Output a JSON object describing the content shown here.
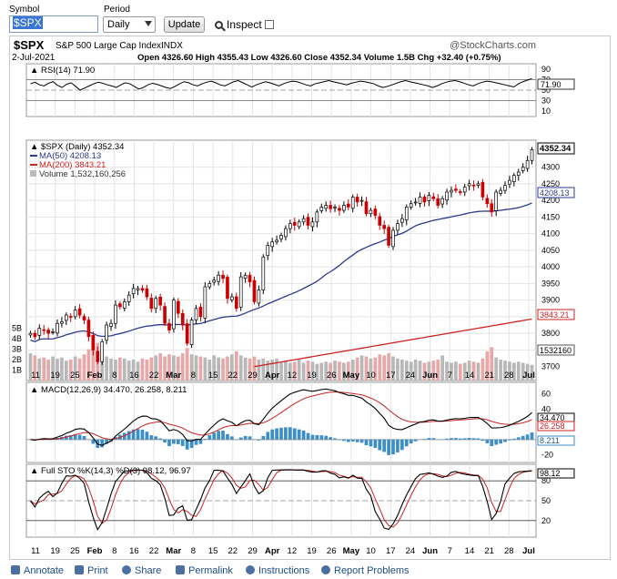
{
  "form": {
    "symbol_label": "Symbol",
    "symbol_value": "$SPX",
    "period_label": "Period",
    "period_value": "Daily",
    "update_label": "Update",
    "inspect_label": "Inspect"
  },
  "header": {
    "symbol": "$SPX",
    "name": "S&P 500 Large Cap Index",
    "exchange": "INDX",
    "brand": "@StockCharts.com",
    "date": "2-Jul-2021",
    "ohlc": "Open 4326.60  High 4355.43  Low 4326.60  Close 4352.34  Volume 1.5B  Chg +32.40 (+0.75%)"
  },
  "colors": {
    "up": "#ffffff",
    "down": "#cc0000",
    "ma50": "#2b3a8f",
    "ma200": "#cc2222",
    "macd_hist": "#3c8ec8",
    "grid": "#e0e0e0"
  },
  "rsi": {
    "title": "RSI(14) 71.90",
    "last_label": "71.90",
    "ticks": [
      90,
      70,
      50,
      30,
      10
    ],
    "values": [
      62,
      65,
      60,
      58,
      63,
      66,
      59,
      55,
      61,
      64,
      57,
      50,
      54,
      58,
      62,
      65,
      63,
      60,
      58,
      55,
      60,
      64,
      62,
      57,
      52,
      55,
      60,
      63,
      61,
      58,
      55,
      53,
      57,
      62,
      66,
      64,
      60,
      58,
      62,
      65,
      67,
      64,
      60,
      58,
      62,
      66,
      68,
      64,
      60,
      56,
      60,
      63,
      66,
      64,
      61,
      58,
      62,
      65,
      67,
      66,
      63,
      60,
      58,
      62,
      64,
      66,
      68,
      66,
      64,
      62,
      60,
      63,
      65,
      67,
      66,
      64,
      62,
      58,
      55,
      57,
      60,
      63,
      66,
      68,
      66,
      64,
      62,
      60,
      58,
      55,
      58,
      62,
      65,
      67,
      68,
      66,
      63,
      60,
      58,
      62,
      65,
      67,
      66,
      64,
      62,
      60,
      58,
      56,
      62,
      66,
      69,
      71.9
    ]
  },
  "price": {
    "legend_title": "$SPX (Daily) 4352.34",
    "ma50_legend": "MA(50) 4208.13",
    "ma200_legend": "MA(200) 3843.21",
    "volume_legend": "Volume 1,532,160,256",
    "last_label": "4352.34",
    "ma50_label": "4208.13",
    "ma200_label": "3843.21",
    "volume_label": "1532160",
    "ticks": [
      4300,
      4250,
      4200,
      4150,
      4100,
      4050,
      4000,
      3950,
      3900,
      3850,
      3800,
      3750,
      3700
    ],
    "vol_ticks": [
      "5B",
      "4B",
      "3B",
      "2B",
      "1B"
    ],
    "closes": [
      3800,
      3790,
      3815,
      3810,
      3800,
      3805,
      3830,
      3835,
      3855,
      3850,
      3870,
      3855,
      3840,
      3790,
      3750,
      3715,
      3775,
      3825,
      3830,
      3885,
      3880,
      3895,
      3915,
      3935,
      3935,
      3930,
      3910,
      3875,
      3905,
      3885,
      3830,
      3810,
      3900,
      3860,
      3825,
      3770,
      3840,
      3875,
      3850,
      3940,
      3950,
      3960,
      3975,
      3965,
      3905,
      3910,
      3875,
      3970,
      3975,
      3955,
      3895,
      3930,
      4030,
      4065,
      4075,
      4080,
      4095,
      4115,
      4130,
      4125,
      4135,
      4145,
      4125,
      4135,
      4165,
      4180,
      4185,
      4175,
      4180,
      4170,
      4185,
      4180,
      4210,
      4195,
      4200,
      4160,
      4170,
      4155,
      4125,
      4115,
      4065,
      4110,
      4130,
      4145,
      4180,
      4190,
      4195,
      4210,
      4195,
      4215,
      4205,
      4185,
      4205,
      4225,
      4230,
      4230,
      4225,
      4240,
      4250,
      4245,
      4250,
      4210,
      4190,
      4165,
      4225,
      4230,
      4245,
      4260,
      4275,
      4285,
      4300,
      4320,
      4352.34
    ],
    "volumes": [
      2.6,
      2.4,
      2.1,
      2.2,
      2.0,
      2.3,
      2.1,
      2.2,
      1.9,
      2.0,
      2.3,
      2.1,
      2.5,
      3.0,
      3.4,
      3.6,
      2.8,
      2.3,
      2.1,
      2.0,
      2.2,
      2.1,
      1.9,
      2.0,
      1.8,
      2.1,
      2.0,
      2.2,
      2.4,
      2.6,
      2.3,
      2.5,
      2.4,
      2.3,
      2.6,
      3.1,
      2.5,
      2.4,
      2.3,
      2.2,
      2.0,
      2.4,
      2.2,
      2.1,
      2.3,
      2.5,
      2.8,
      2.4,
      2.2,
      2.1,
      2.3,
      2.0,
      2.1,
      1.9,
      2.0,
      2.1,
      1.8,
      1.9,
      1.7,
      1.8,
      2.0,
      1.7,
      1.9,
      1.8,
      1.6,
      1.7,
      1.8,
      1.7,
      1.9,
      1.8,
      1.7,
      1.8,
      2.0,
      2.2,
      2.4,
      2.3,
      2.1,
      2.2,
      2.5,
      2.4,
      2.6,
      2.3,
      2.1,
      2.0,
      1.9,
      1.8,
      2.0,
      1.9,
      1.7,
      1.8,
      1.9,
      2.0,
      2.4,
      1.8,
      1.7,
      1.8,
      1.6,
      1.7,
      1.9,
      1.8,
      1.7,
      2.1,
      2.8,
      3.2,
      2.2,
      2.0,
      1.9,
      1.8,
      1.7,
      1.8,
      1.7,
      1.6,
      1.5
    ]
  },
  "macd": {
    "title": "MACD(12,26,9) 34.470, 26.258, 8.211",
    "labels": [
      "34.470",
      "26.258",
      "8.211"
    ],
    "ticks": [
      60,
      40,
      20,
      0,
      -20
    ]
  },
  "sto": {
    "title": "Full STO %K(14,3) %D(3) 98.12, 96.97",
    "last_label": "98.12",
    "ticks": [
      80,
      50,
      20
    ]
  },
  "xaxis": {
    "labels": [
      "11",
      "19",
      "25",
      "Feb",
      "8",
      "16",
      "22",
      "Mar",
      "8",
      "15",
      "22",
      "29",
      "Apr",
      "12",
      "19",
      "26",
      "May",
      "10",
      "17",
      "24",
      "Jun",
      "7",
      "14",
      "21",
      "28",
      "Jul"
    ]
  },
  "footer": {
    "annotate": "Annotate",
    "print": "Print",
    "share": "Share",
    "permalink": "Permalink",
    "instructions": "Instructions",
    "report": "Report Problems"
  }
}
